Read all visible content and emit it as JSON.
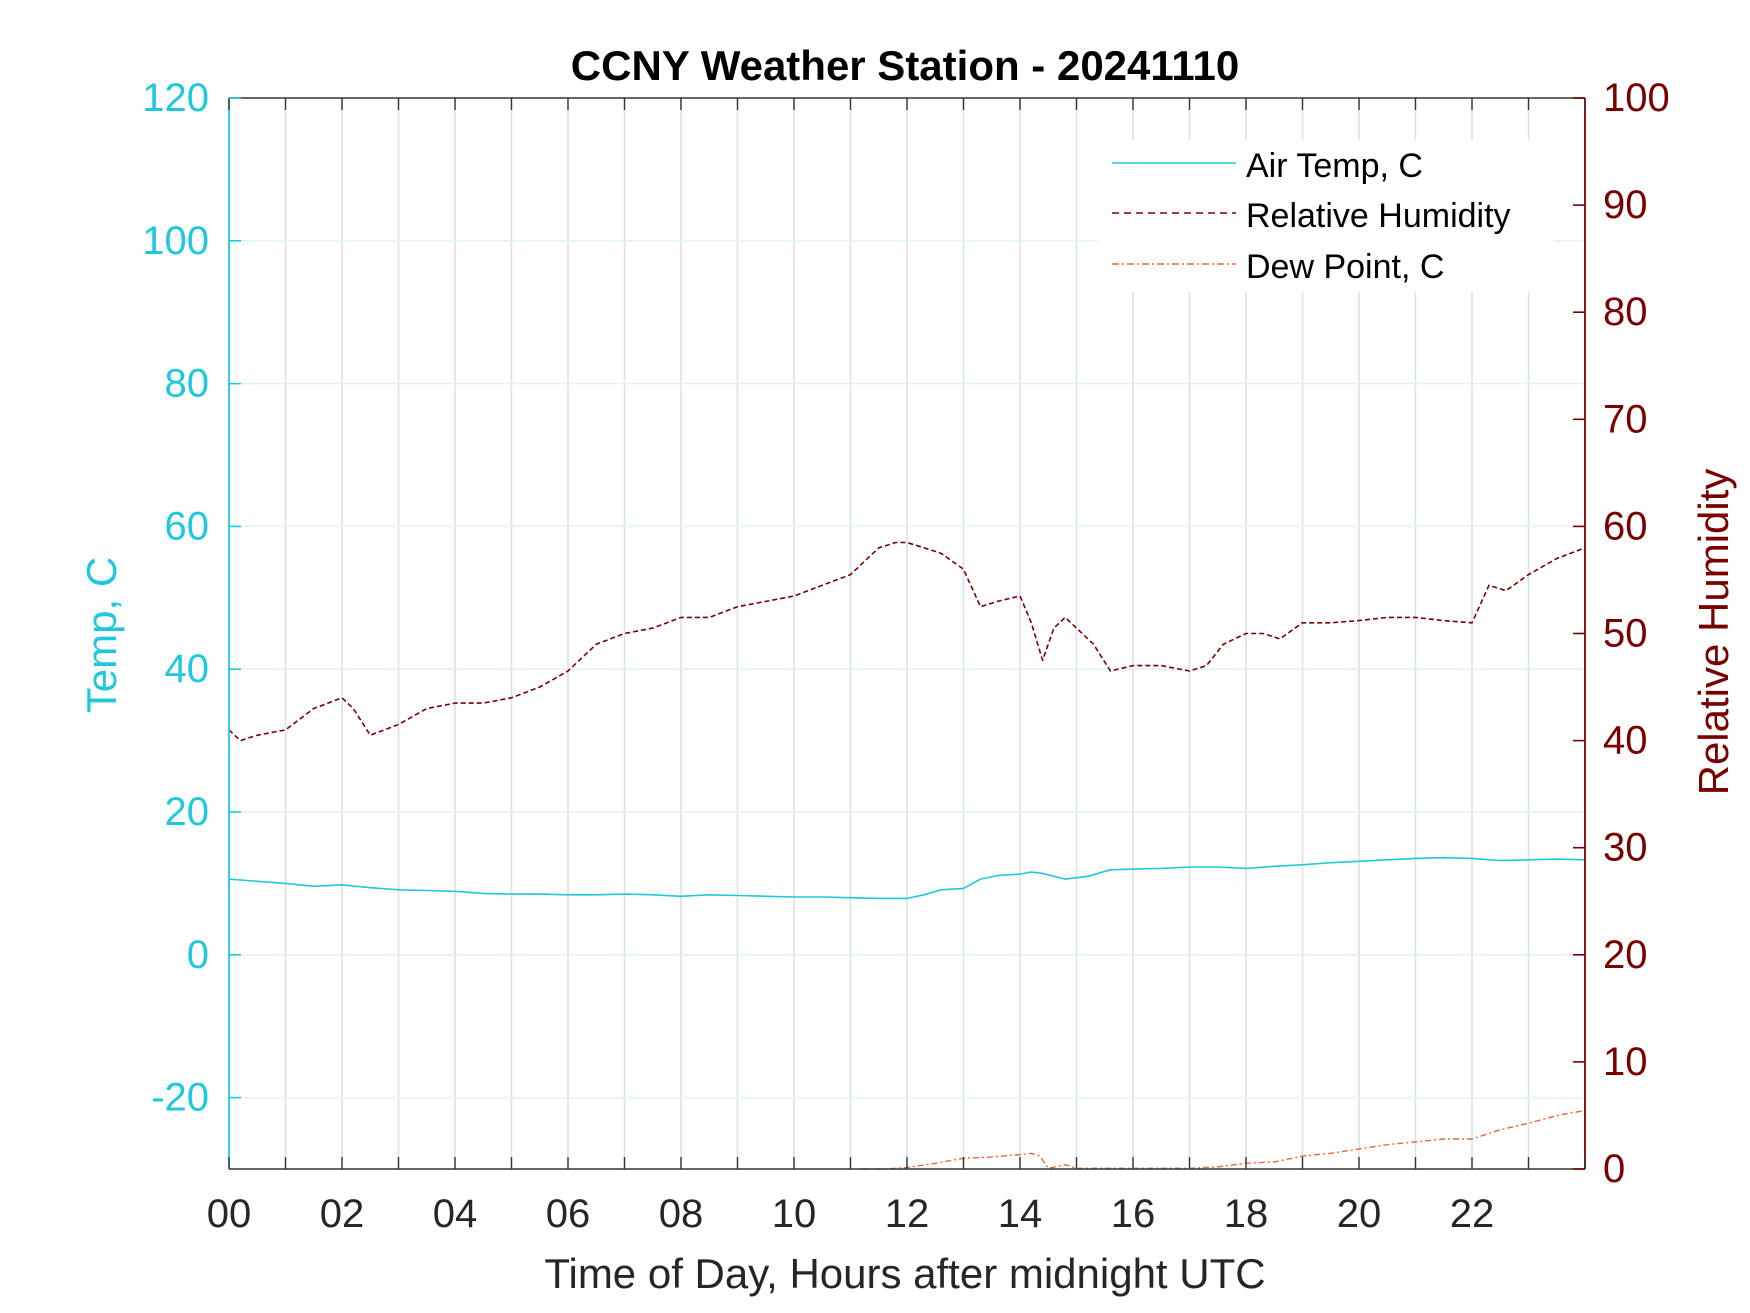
{
  "chart_data": {
    "type": "line",
    "title": "CCNY Weather Station - 20241110",
    "xlabel": "Time of Day, Hours after midnight UTC",
    "ylabel_left": "Temp, C",
    "ylabel_right": "Relative Humidity",
    "xlim": [
      0,
      24
    ],
    "ylim_left": [
      -30,
      120
    ],
    "ylim_right": [
      0,
      100
    ],
    "x_ticks": [
      0,
      2,
      4,
      6,
      8,
      10,
      12,
      14,
      16,
      18,
      20,
      22
    ],
    "x_tick_labels": [
      "00",
      "02",
      "04",
      "06",
      "08",
      "10",
      "12",
      "14",
      "16",
      "18",
      "20",
      "22"
    ],
    "y_left_ticks": [
      120,
      100,
      80,
      60,
      40,
      20,
      0,
      -20
    ],
    "y_left_tick_labels": [
      "120",
      "100",
      "80",
      "60",
      "40",
      "20",
      "0",
      "-20"
    ],
    "y_right_ticks": [
      100,
      90,
      80,
      70,
      60,
      50,
      40,
      30,
      20,
      10,
      0
    ],
    "y_right_tick_labels": [
      "100",
      "90",
      "80",
      "70",
      "60",
      "50",
      "40",
      "30",
      "20",
      "10",
      "0"
    ],
    "grid": true,
    "legend_position": "top-right",
    "colors": {
      "air_temp": "#1fc8dc",
      "humidity": "#7a0000",
      "dew_point": "#e8683a",
      "grid": "#d8e3ea",
      "axis": "#333333"
    },
    "series": [
      {
        "name": "Air Temp, C",
        "axis": "left",
        "style": "solid",
        "x": [
          0,
          0.5,
          1,
          1.5,
          2,
          2.5,
          3,
          3.5,
          4,
          4.5,
          5,
          5.5,
          6,
          6.5,
          7,
          7.5,
          8,
          8.5,
          9,
          9.5,
          10,
          10.5,
          11,
          11.5,
          12,
          12.3,
          12.6,
          13,
          13.3,
          13.6,
          14,
          14.2,
          14.4,
          14.8,
          15.2,
          15.6,
          16,
          16.5,
          17,
          17.5,
          18,
          18.5,
          19,
          19.5,
          20,
          20.5,
          21,
          21.5,
          22,
          22.5,
          23,
          23.5,
          24
        ],
        "values": [
          10.6,
          10.3,
          10.0,
          9.6,
          9.8,
          9.4,
          9.1,
          9.0,
          8.9,
          8.6,
          8.5,
          8.5,
          8.4,
          8.4,
          8.5,
          8.4,
          8.2,
          8.4,
          8.3,
          8.2,
          8.1,
          8.1,
          8.0,
          7.9,
          7.9,
          8.4,
          9.1,
          9.3,
          10.6,
          11.1,
          11.3,
          11.6,
          11.4,
          10.6,
          11.0,
          11.9,
          12.0,
          12.1,
          12.3,
          12.3,
          12.1,
          12.4,
          12.6,
          12.9,
          13.1,
          13.3,
          13.5,
          13.6,
          13.5,
          13.2,
          13.3,
          13.4,
          13.3
        ]
      },
      {
        "name": "Relative Humidity",
        "axis": "right",
        "style": "dashed",
        "x": [
          0,
          0.2,
          0.5,
          1,
          1.5,
          2,
          2.2,
          2.5,
          3,
          3.5,
          4,
          4.5,
          5,
          5.5,
          6,
          6.5,
          7,
          7.5,
          8,
          8.5,
          9,
          9.5,
          10,
          10.5,
          11,
          11.5,
          11.8,
          12,
          12.3,
          12.6,
          13,
          13.3,
          13.6,
          14,
          14.2,
          14.4,
          14.6,
          14.8,
          15,
          15.3,
          15.6,
          16,
          16.5,
          17,
          17.3,
          17.6,
          18,
          18.3,
          18.6,
          19,
          19.5,
          20,
          20.5,
          21,
          21.5,
          22,
          22.3,
          22.6,
          23,
          23.5,
          24
        ],
        "values": [
          41,
          40,
          40.5,
          41,
          43,
          44,
          43,
          40.5,
          41.5,
          43,
          43.5,
          43.5,
          44,
          45,
          46.5,
          49,
          50,
          50.5,
          51.5,
          51.5,
          52.5,
          53,
          53.5,
          54.5,
          55.5,
          58,
          58.5,
          58.5,
          58,
          57.5,
          56,
          52.5,
          53,
          53.5,
          51,
          47.5,
          50.5,
          51.5,
          50.5,
          49,
          46.5,
          47,
          47,
          46.5,
          47,
          49,
          50,
          50,
          49.5,
          51,
          51,
          51.2,
          51.5,
          51.5,
          51.2,
          51,
          54.5,
          54,
          55.5,
          57,
          58
        ]
      },
      {
        "name": "Dew Point, C",
        "axis": "left",
        "style": "dashdot",
        "x": [
          11.2,
          11.6,
          12,
          12.5,
          13,
          13.5,
          14,
          14.2,
          14.35,
          14.5,
          14.8,
          15,
          17,
          17.5,
          18,
          18.5,
          19,
          19.5,
          20,
          20.5,
          21,
          21.5,
          22,
          22.5,
          23,
          23.5,
          24
        ],
        "values": [
          -30,
          -30,
          -29.8,
          -29.2,
          -28.5,
          -28.3,
          -28.0,
          -27.8,
          -28.2,
          -29.9,
          -29.4,
          -29.9,
          -29.9,
          -29.7,
          -29.2,
          -29.0,
          -28.2,
          -27.8,
          -27.2,
          -26.6,
          -26.2,
          -25.8,
          -25.8,
          -24.5,
          -23.6,
          -22.5,
          -21.8
        ]
      }
    ]
  }
}
